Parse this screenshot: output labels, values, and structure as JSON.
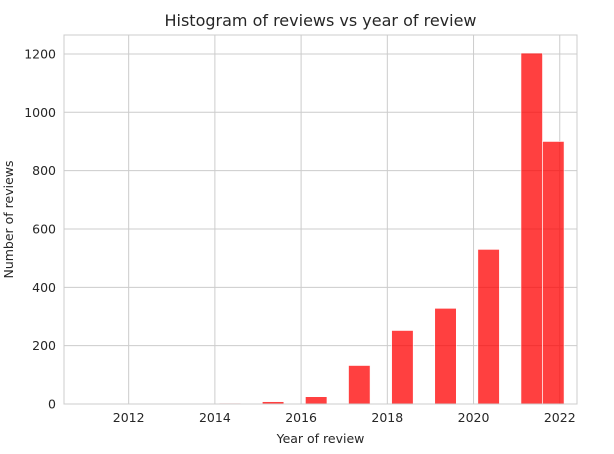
{
  "colors": {
    "bar": "#ff0000",
    "grid": "#cccccc",
    "text": "#262626"
  },
  "chart_data": {
    "type": "bar",
    "title": "Histogram of reviews vs year of review",
    "xlabel": "Year of review",
    "ylabel": "Number of reviews",
    "xlim": [
      2010.5,
      2022.4
    ],
    "ylim": [
      0,
      1265
    ],
    "xticks": [
      2012,
      2014,
      2016,
      2018,
      2020,
      2022
    ],
    "yticks": [
      0,
      200,
      400,
      600,
      800,
      1000,
      1200
    ],
    "grid": true,
    "bar_alpha": 0.75,
    "bins": [
      {
        "start": 2010.6,
        "end": 2011.1,
        "value": 1
      },
      {
        "start": 2011.1,
        "end": 2011.6,
        "value": 0
      },
      {
        "start": 2011.6,
        "end": 2012.1,
        "value": 0
      },
      {
        "start": 2012.1,
        "end": 2012.6,
        "value": 1
      },
      {
        "start": 2012.6,
        "end": 2013.1,
        "value": 0
      },
      {
        "start": 2013.1,
        "end": 2013.6,
        "value": 1
      },
      {
        "start": 2013.6,
        "end": 2014.1,
        "value": 0
      },
      {
        "start": 2014.1,
        "end": 2014.6,
        "value": 3
      },
      {
        "start": 2014.6,
        "end": 2015.1,
        "value": 0
      },
      {
        "start": 2015.1,
        "end": 2015.6,
        "value": 8
      },
      {
        "start": 2015.6,
        "end": 2016.1,
        "value": 0
      },
      {
        "start": 2016.1,
        "end": 2016.6,
        "value": 25
      },
      {
        "start": 2016.6,
        "end": 2017.1,
        "value": 0
      },
      {
        "start": 2017.1,
        "end": 2017.6,
        "value": 132
      },
      {
        "start": 2017.6,
        "end": 2018.1,
        "value": 0
      },
      {
        "start": 2018.1,
        "end": 2018.6,
        "value": 252
      },
      {
        "start": 2018.6,
        "end": 2019.1,
        "value": 0
      },
      {
        "start": 2019.1,
        "end": 2019.6,
        "value": 328
      },
      {
        "start": 2019.6,
        "end": 2020.1,
        "value": 0
      },
      {
        "start": 2020.1,
        "end": 2020.6,
        "value": 530
      },
      {
        "start": 2020.6,
        "end": 2021.1,
        "value": 0
      },
      {
        "start": 2021.1,
        "end": 2021.6,
        "value": 1203
      },
      {
        "start": 2021.6,
        "end": 2022.1,
        "value": 900
      }
    ]
  }
}
